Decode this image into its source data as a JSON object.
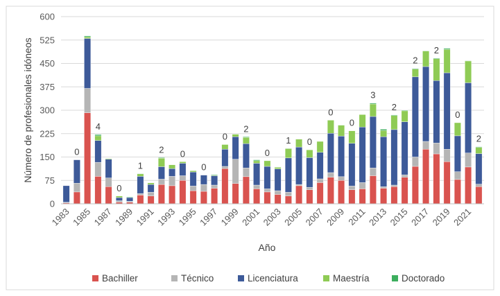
{
  "chart_data": {
    "type": "bar",
    "stacked": true,
    "title": "",
    "xlabel": "Año",
    "ylabel": "Número de profesionales idóneos",
    "ylim": [
      0,
      600
    ],
    "yticks": [
      0,
      75,
      150,
      225,
      300,
      375,
      450,
      525,
      600
    ],
    "grid": "horizontal",
    "legend_position": "bottom",
    "x": [
      1983,
      1984,
      1985,
      1986,
      1987,
      1988,
      1989,
      1990,
      1991,
      1992,
      1993,
      1994,
      1995,
      1996,
      1997,
      1998,
      1999,
      2000,
      2001,
      2002,
      2003,
      2004,
      2005,
      2006,
      2007,
      2008,
      2009,
      2010,
      2011,
      2012,
      2013,
      2014,
      2015,
      2016,
      2017,
      2018,
      2019,
      2020,
      2021,
      2022
    ],
    "x_tick_labels": [
      "1983",
      "1985",
      "1987",
      "1989",
      "1991",
      "1993",
      "1995",
      "1997",
      "1999",
      "2001",
      "2003",
      "2005",
      "2007",
      "2009",
      "2011",
      "2013",
      "2015",
      "2017",
      "2019",
      "2021"
    ],
    "series": [
      {
        "name": "Bachiller",
        "color": "#d9534f",
        "values": [
          3,
          38,
          292,
          88,
          55,
          5,
          5,
          28,
          25,
          62,
          58,
          75,
          42,
          40,
          50,
          113,
          65,
          87,
          48,
          38,
          30,
          25,
          58,
          45,
          68,
          85,
          75,
          45,
          48,
          90,
          50,
          55,
          85,
          120,
          175,
          160,
          135,
          78,
          118,
          55
        ]
      },
      {
        "name": "Técnico",
        "color": "#b5b5b5",
        "values": [
          2,
          28,
          78,
          45,
          28,
          5,
          3,
          5,
          12,
          17,
          30,
          15,
          15,
          22,
          10,
          7,
          78,
          28,
          12,
          10,
          12,
          12,
          4,
          8,
          12,
          15,
          12,
          12,
          20,
          25,
          5,
          5,
          8,
          30,
          25,
          35,
          40,
          25,
          45,
          8
        ]
      },
      {
        "name": "Licenciatura",
        "color": "#3d5a99",
        "values": [
          53,
          75,
          160,
          70,
          60,
          10,
          12,
          55,
          25,
          40,
          25,
          40,
          45,
          30,
          30,
          55,
          72,
          78,
          70,
          72,
          70,
          110,
          120,
          95,
          85,
          126,
          130,
          137,
          178,
          165,
          160,
          178,
          170,
          257,
          240,
          200,
          245,
          115,
          225,
          98
        ]
      },
      {
        "name": "Maestría",
        "color": "#8fcb55",
        "values": [
          0,
          0,
          5,
          15,
          2,
          5,
          0,
          8,
          5,
          27,
          12,
          5,
          4,
          0,
          2,
          15,
          8,
          20,
          8,
          18,
          5,
          30,
          25,
          25,
          35,
          42,
          35,
          40,
          40,
          40,
          20,
          45,
          35,
          25,
          50,
          70,
          75,
          42,
          70,
          20
        ]
      },
      {
        "name": "Doctorado",
        "color": "#3dae5e",
        "values": [
          0,
          0,
          3,
          4,
          1,
          0,
          2,
          1,
          0,
          2,
          0,
          0,
          0,
          0,
          2,
          0,
          0,
          2,
          3,
          0,
          1,
          1,
          0,
          0,
          0,
          0,
          1,
          0,
          0,
          3,
          4,
          2,
          2,
          2,
          1,
          2,
          3,
          0,
          1,
          2
        ]
      }
    ]
  }
}
